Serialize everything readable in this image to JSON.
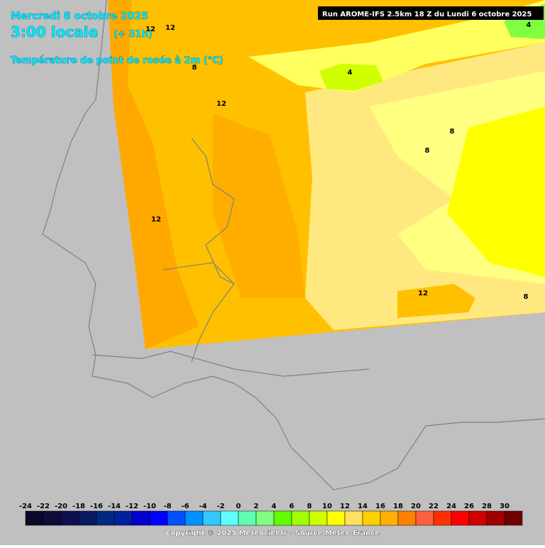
{
  "header": {
    "date": "Mercredi 8 octobre 2025",
    "time": "3:00 locale",
    "lead": "(+ 31h)",
    "parameter": "Température de point de rosée à 2m (°C)",
    "run": "Run AROME-IFS 2.5km 18 Z du Lundi 6 octobre 2025"
  },
  "contour_labels": [
    12,
    12,
    12,
    12,
    12,
    8,
    8,
    8,
    8,
    4,
    4
  ],
  "legend": {
    "values": [
      -24,
      -22,
      -20,
      -18,
      -16,
      -14,
      -12,
      -10,
      -8,
      -6,
      -4,
      -2,
      0,
      2,
      4,
      6,
      8,
      10,
      12,
      14,
      16,
      18,
      20,
      22,
      24,
      26,
      28,
      30
    ],
    "colors": [
      "#0a0a28",
      "#0d0d3a",
      "#101050",
      "#0a1a60",
      "#002a80",
      "#0020a0",
      "#0000d0",
      "#0000ff",
      "#0050ff",
      "#0090ff",
      "#30c8ff",
      "#60ffff",
      "#60ffb0",
      "#80ff80",
      "#60ff00",
      "#a0ff00",
      "#d0ff00",
      "#ffff00",
      "#ffe060",
      "#ffd000",
      "#ffb000",
      "#ff8000",
      "#ff6040",
      "#ff3000",
      "#ff0000",
      "#d00000",
      "#a00000",
      "#700000"
    ]
  },
  "footer": {
    "copyright": "Copyright © 2025 Meteociel.fr - Source Meteo-France"
  }
}
